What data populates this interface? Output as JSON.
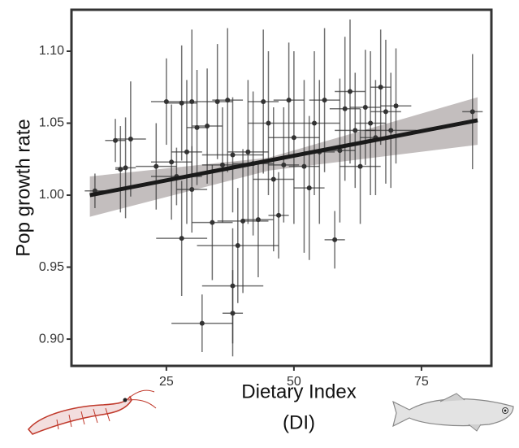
{
  "chart_data": {
    "type": "scatter",
    "x_label": "Dietary Index",
    "x_label_sub": "(DI)",
    "y_label": "Pop growth rate",
    "x": [
      11,
      15,
      16,
      17,
      18,
      23,
      25,
      26,
      27,
      28,
      28,
      29,
      30,
      30,
      31,
      32,
      33,
      34,
      35,
      36,
      37,
      38,
      38,
      38,
      39,
      40,
      41,
      42,
      43,
      44,
      45,
      46,
      47,
      48,
      49,
      50,
      52,
      53,
      54,
      55,
      56,
      58,
      59,
      60,
      61,
      62,
      63,
      64,
      65,
      66,
      67,
      68,
      69,
      70,
      85
    ],
    "y": [
      1.003,
      1.038,
      1.018,
      1.019,
      1.039,
      1.02,
      1.065,
      1.023,
      1.013,
      0.97,
      1.064,
      1.03,
      1.065,
      1.004,
      1.047,
      0.911,
      1.048,
      0.981,
      1.065,
      1.021,
      1.066,
      1.028,
      0.937,
      0.918,
      0.965,
      0.982,
      1.03,
      1.022,
      0.983,
      1.065,
      1.05,
      1.011,
      0.986,
      1.021,
      1.066,
      1.04,
      1.02,
      1.005,
      1.05,
      1.03,
      1.066,
      0.969,
      1.031,
      1.06,
      1.072,
      1.045,
      1.02,
      1.061,
      1.05,
      1.04,
      1.075,
      1.058,
      1.045,
      1.062,
      1.058
    ],
    "x_err": [
      2,
      2,
      1,
      2,
      3,
      4,
      3,
      4,
      5,
      5,
      3,
      3,
      2,
      3,
      2,
      6,
      3,
      4,
      3,
      4,
      3,
      6,
      6,
      2,
      8,
      5,
      4,
      4,
      3,
      3,
      4,
      4,
      2,
      3,
      3,
      5,
      3,
      3,
      5,
      3,
      3,
      2,
      3,
      3,
      3,
      4,
      4,
      3,
      3,
      3,
      2,
      3,
      5,
      3,
      2
    ],
    "y_err": [
      0.012,
      0.015,
      0.03,
      0.035,
      0.04,
      0.03,
      0.03,
      0.04,
      0.02,
      0.04,
      0.04,
      0.05,
      0.05,
      0.03,
      0.04,
      0.02,
      0.04,
      0.04,
      0.04,
      0.04,
      0.05,
      0.04,
      0.04,
      0.03,
      0.04,
      0.05,
      0.05,
      0.05,
      0.04,
      0.05,
      0.05,
      0.05,
      0.03,
      0.04,
      0.04,
      0.06,
      0.06,
      0.05,
      0.05,
      0.05,
      0.05,
      0.02,
      0.05,
      0.05,
      0.05,
      0.04,
      0.04,
      0.04,
      0.05,
      0.04,
      0.04,
      0.05,
      0.04,
      0.04,
      0.04
    ],
    "color": "#333333",
    "fit": {
      "x": [
        10,
        45,
        86
      ],
      "y": [
        1.0,
        1.024,
        1.052
      ],
      "lower": [
        0.985,
        1.017,
        1.035
      ],
      "upper": [
        1.013,
        1.026,
        1.068
      ],
      "color": "#1a1a1a",
      "band_color": "#b8b3b3"
    },
    "xlim": [
      6.4,
      88.7
    ],
    "ylim": [
      0.8814,
      1.1288
    ],
    "xticks": [
      25,
      50,
      75
    ],
    "yticks": [
      {
        "value": 0.9,
        "label": "0.90"
      },
      0.95,
      {
        "value": 1.0,
        "label": "1.00"
      },
      1.05,
      {
        "value": 1.1,
        "label": "1.10"
      }
    ]
  }
}
